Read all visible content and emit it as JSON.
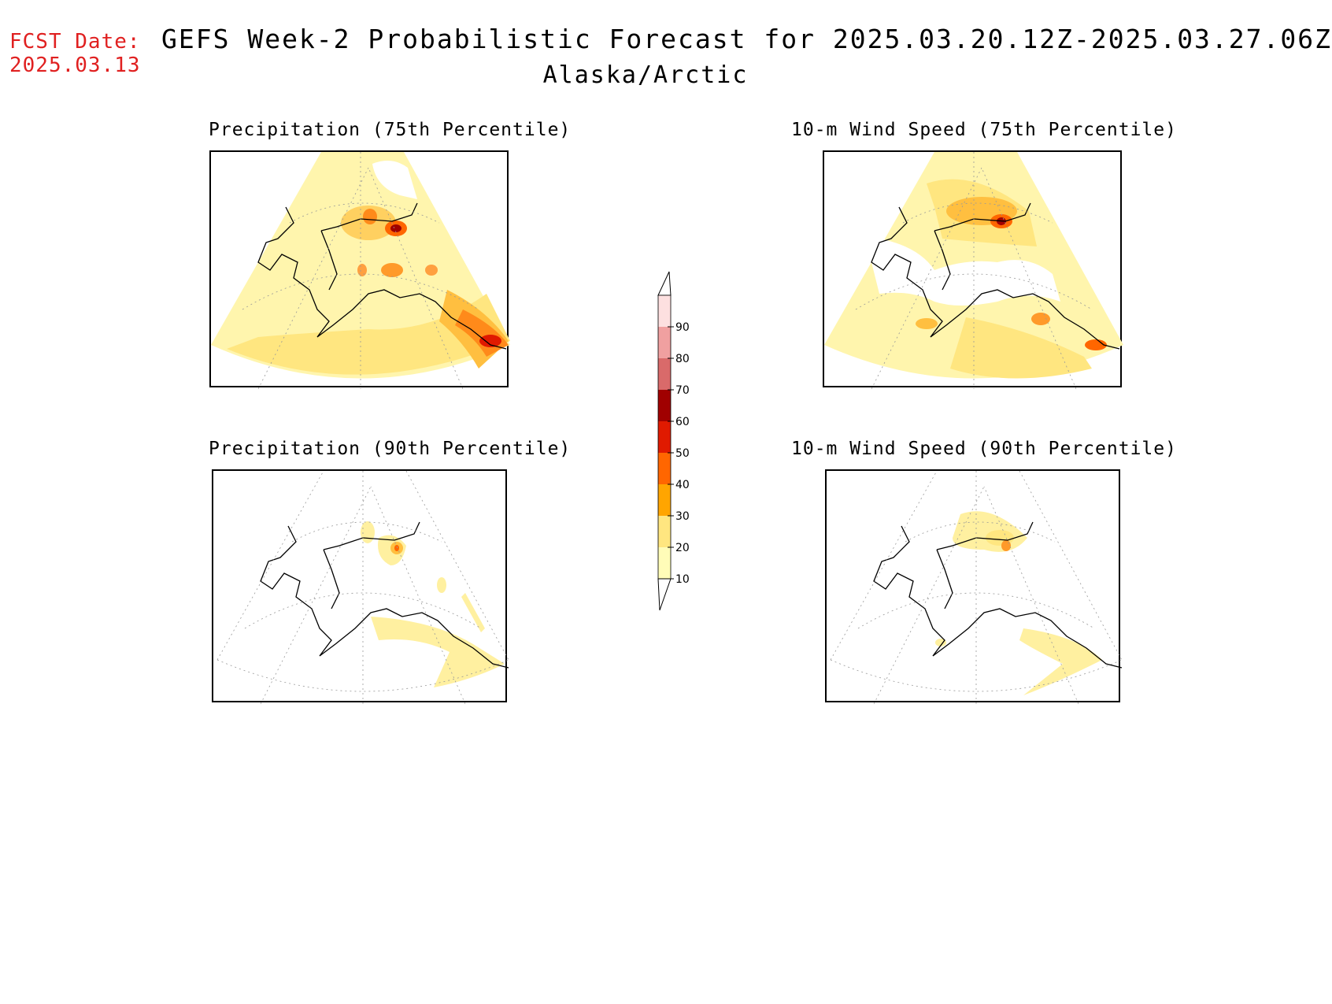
{
  "header": {
    "fcst_label": "FCST Date:",
    "fcst_date": "2025.03.13",
    "title": "GEFS Week-2 Probabilistic Forecast for 2025.03.20.12Z-2025.03.27.06Z",
    "region": "Alaska/Arctic"
  },
  "panels": [
    {
      "title": "Precipitation (75th Percentile)"
    },
    {
      "title": "10-m Wind Speed (75th Percentile)"
    },
    {
      "title": "Precipitation (90th Percentile)"
    },
    {
      "title": "10-m Wind Speed (90th Percentile)"
    }
  ],
  "colorbar": {
    "levels": [
      "10",
      "20",
      "30",
      "40",
      "50",
      "60",
      "70",
      "80",
      "90"
    ],
    "colors": [
      "#fffcb8",
      "#ffe680",
      "#ffa500",
      "#ff6600",
      "#e01a00",
      "#a00000",
      "#d96a6a",
      "#f0a0a0",
      "#fde0e0"
    ]
  }
}
